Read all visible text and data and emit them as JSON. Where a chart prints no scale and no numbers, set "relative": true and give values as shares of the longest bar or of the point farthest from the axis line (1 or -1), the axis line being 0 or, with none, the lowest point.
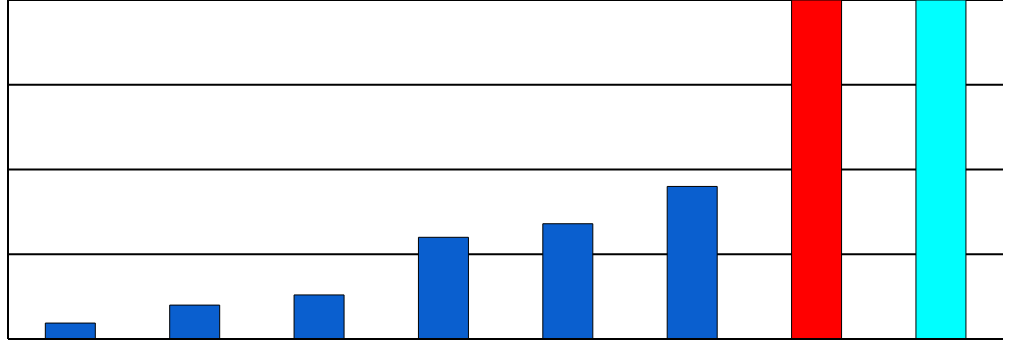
{
  "chart_data": {
    "type": "bar",
    "relative": true,
    "grid": "y",
    "categories": [
      null,
      null,
      null,
      null,
      null,
      null,
      null,
      null
    ],
    "values": [
      0.047,
      0.1,
      0.13,
      0.3,
      0.34,
      0.45,
      1,
      1
    ],
    "colors": [
      "#0a5fcf",
      "#0a5fcf",
      "#0a5fcf",
      "#0a5fcf",
      "#0a5fcf",
      "#0a5fcf",
      "#ff0000",
      "#00ffff"
    ]
  }
}
